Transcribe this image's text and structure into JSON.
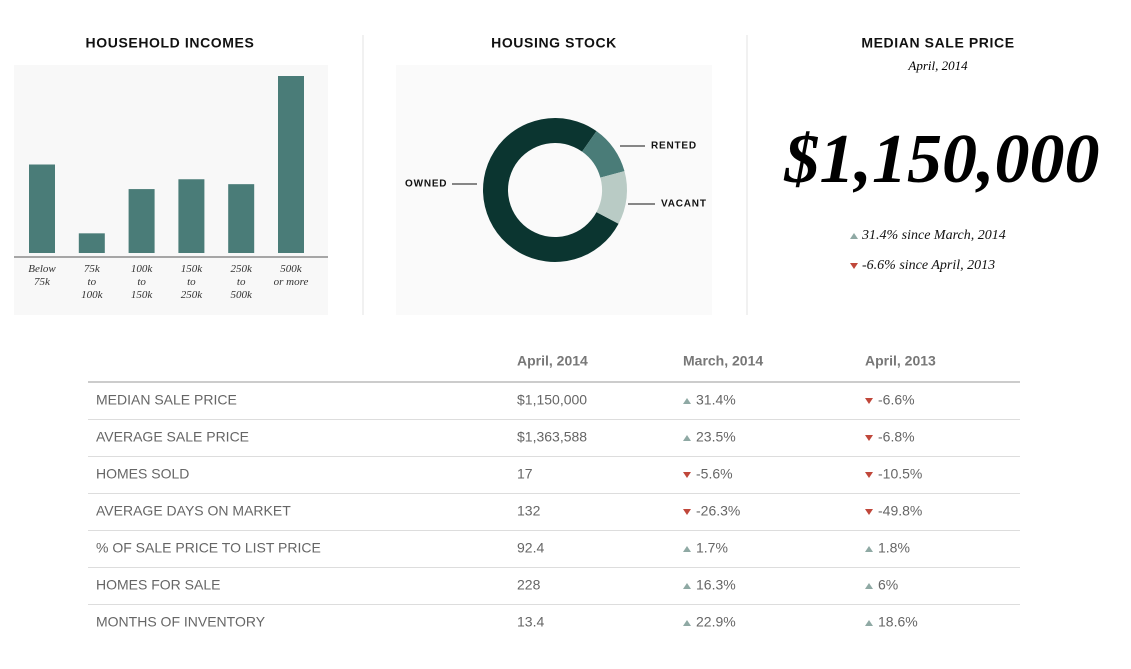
{
  "chart_data": [
    {
      "type": "bar",
      "title": "HOUSEHOLD INCOMES",
      "categories": [
        "Below\n75k",
        "75k\nto\n100k",
        "100k\nto\n150k",
        "150k\nto\n250k",
        "250k\nto\n500k",
        "500k\nor more"
      ],
      "values": [
        18,
        4,
        13,
        15,
        14,
        36
      ],
      "color": "#4a7c78"
    },
    {
      "type": "donut",
      "title": "HOUSING STOCK",
      "categories": [
        "OWNED",
        "RENTED",
        "VACANT"
      ],
      "values": [
        77,
        11,
        12
      ],
      "colors": [
        "#0b3530",
        "#4a7c78",
        "#b9cbc5"
      ]
    }
  ],
  "headline": {
    "title": "MEDIAN SALE PRICE",
    "subtitle": "April, 2014",
    "value": "$1,150,000",
    "changes": [
      "31.4% since March, 2014",
      "-6.6% since April, 2013"
    ]
  },
  "table": {
    "columns": [
      "April, 2014",
      "March, 2014",
      "April, 2013"
    ],
    "rows": [
      [
        "MEDIAN SALE PRICE",
        "$1,150,000",
        "31.4%",
        "-6.6%"
      ],
      [
        "AVERAGE SALE PRICE",
        "$1,363,588",
        "23.5%",
        "-6.8%"
      ],
      [
        "HOMES SOLD",
        "17",
        "-5.6%",
        "-10.5%"
      ],
      [
        "AVERAGE DAYS ON MARKET",
        "132",
        "-26.3%",
        "-49.8%"
      ],
      [
        "% OF SALE PRICE TO LIST PRICE",
        "92.4",
        "1.7%",
        "1.8%"
      ],
      [
        "HOMES FOR SALE",
        "228",
        "16.3%",
        "6%"
      ],
      [
        "MONTHS OF INVENTORY",
        "13.4",
        "22.9%",
        "18.6%"
      ]
    ]
  }
}
